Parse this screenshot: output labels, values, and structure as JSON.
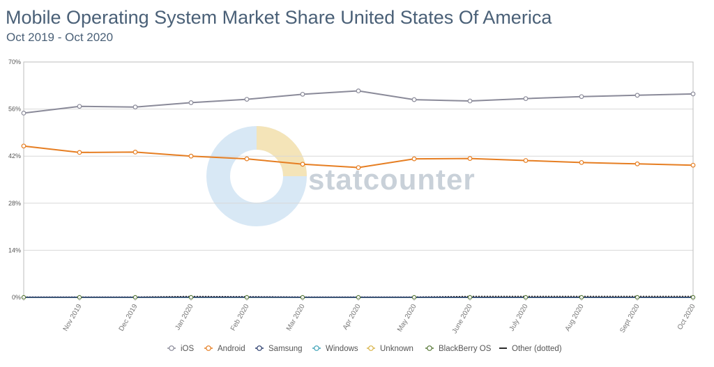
{
  "title": "Mobile Operating System Market Share United States Of America",
  "subtitle": "Oct 2019 - Oct 2020",
  "watermark": "statcounter",
  "chart_data": {
    "type": "line",
    "title": "Mobile Operating System Market Share United States Of America",
    "subtitle": "Oct 2019 - Oct 2020",
    "xlabel": "",
    "ylabel": "",
    "ylim": [
      0,
      70
    ],
    "y_ticks": [
      0,
      14,
      28,
      42,
      56,
      70
    ],
    "y_tick_labels": [
      "0%",
      "14%",
      "28%",
      "42%",
      "56%",
      "70%"
    ],
    "grid": true,
    "legend_position": "bottom",
    "categories": [
      "Oct 2019",
      "Nov 2019",
      "Dec 2019",
      "Jan 2020",
      "Feb 2020",
      "Mar 2020",
      "Apr 2020",
      "May 2020",
      "June 2020",
      "July 2020",
      "Aug 2020",
      "Sept 2020",
      "Oct 2020"
    ],
    "x_tick_labels": [
      "",
      "Nov 2019",
      "Dec 2019",
      "Jan 2020",
      "Feb 2020",
      "Mar 2020",
      "Apr 2020",
      "May 2020",
      "June 2020",
      "July 2020",
      "Aug 2020",
      "Sept 2020",
      "Oct 2020"
    ],
    "series": [
      {
        "name": "iOS",
        "color": "#8a8a99",
        "values": [
          54.8,
          56.8,
          56.6,
          57.9,
          58.9,
          60.4,
          61.4,
          58.8,
          58.4,
          59.1,
          59.7,
          60.1,
          60.5
        ]
      },
      {
        "name": "Android",
        "color": "#e67e22",
        "values": [
          45.0,
          43.1,
          43.2,
          42.0,
          41.2,
          39.6,
          38.6,
          41.2,
          41.3,
          40.7,
          40.1,
          39.7,
          39.3
        ]
      },
      {
        "name": "Samsung",
        "color": "#2c3e6e",
        "values": [
          0.05,
          0.05,
          0.05,
          0.06,
          0.06,
          0.05,
          0.04,
          0.05,
          0.05,
          0.05,
          0.05,
          0.05,
          0.05
        ]
      },
      {
        "name": "Windows",
        "color": "#3fa3b8",
        "values": [
          0.03,
          0.03,
          0.03,
          0.03,
          0.03,
          0.03,
          0.02,
          0.03,
          0.03,
          0.03,
          0.03,
          0.03,
          0.03
        ]
      },
      {
        "name": "Unknown",
        "color": "#d9b44a",
        "values": [
          0.05,
          0.05,
          0.05,
          0.06,
          0.05,
          0.05,
          0.05,
          0.05,
          0.06,
          0.06,
          0.06,
          0.06,
          0.06
        ]
      },
      {
        "name": "BlackBerry OS",
        "color": "#5a7a3a",
        "values": [
          0.01,
          0.01,
          0.01,
          0.01,
          0.01,
          0.01,
          0.01,
          0.01,
          0.01,
          0.01,
          0.01,
          0.01,
          0.01
        ]
      },
      {
        "name": "Other (dotted)",
        "color": "#2b2b2b",
        "values": [
          0.1,
          0.08,
          0.1,
          0.3,
          0.2,
          0.1,
          0.1,
          0.1,
          0.3,
          0.3,
          0.3,
          0.3,
          0.3
        ]
      }
    ]
  }
}
